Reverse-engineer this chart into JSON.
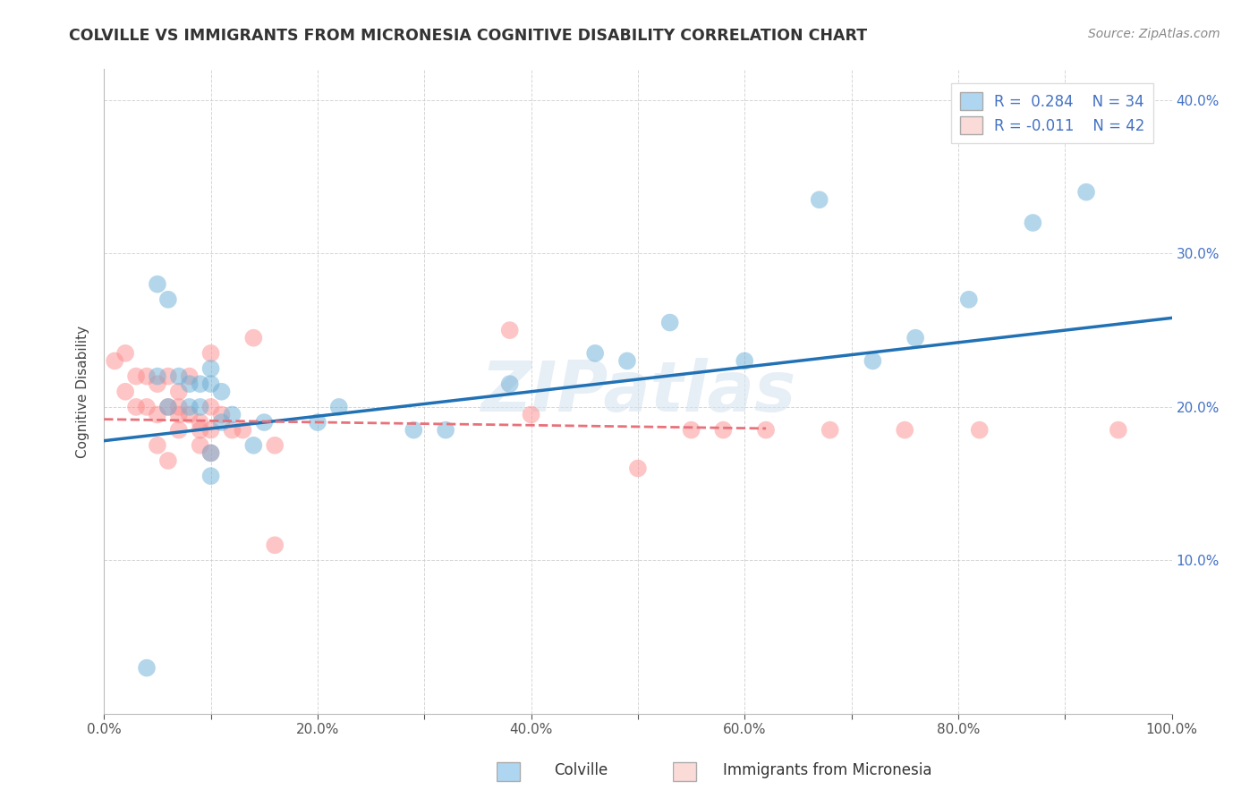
{
  "title": "COLVILLE VS IMMIGRANTS FROM MICRONESIA COGNITIVE DISABILITY CORRELATION CHART",
  "source": "Source: ZipAtlas.com",
  "xlabel_label": "Colville",
  "xlabel_label2": "Immigrants from Micronesia",
  "ylabel": "Cognitive Disability",
  "xlim": [
    0,
    1.0
  ],
  "ylim": [
    0,
    0.42
  ],
  "xticks": [
    0.0,
    0.1,
    0.2,
    0.3,
    0.4,
    0.5,
    0.6,
    0.7,
    0.8,
    0.9,
    1.0
  ],
  "xticklabels": [
    "0.0%",
    "",
    "20.0%",
    "",
    "40.0%",
    "",
    "60.0%",
    "",
    "80.0%",
    "",
    "100.0%"
  ],
  "yticks": [
    0.0,
    0.1,
    0.2,
    0.3,
    0.4
  ],
  "yticklabels_right": [
    "",
    "10.0%",
    "20.0%",
    "30.0%",
    "40.0%"
  ],
  "legend_R1": "R =  0.284",
  "legend_N1": "N = 34",
  "legend_R2": "R = -0.011",
  "legend_N2": "N = 42",
  "color_blue": "#6BAED6",
  "color_pink": "#FC8D8D",
  "color_blue_light": "#AED6F1",
  "color_pink_light": "#FADBD8",
  "color_blue_line": "#2171B5",
  "color_pink_line": "#E8717A",
  "color_grid": "#CCCCCC",
  "color_title": "#333333",
  "color_ytick": "#4472C4",
  "watermark": "ZIPatlas",
  "blue_scatter_x": [
    0.04,
    0.05,
    0.06,
    0.07,
    0.08,
    0.08,
    0.09,
    0.1,
    0.1,
    0.11,
    0.12,
    0.14,
    0.15,
    0.2,
    0.22,
    0.38,
    0.46,
    0.49,
    0.53,
    0.6,
    0.67,
    0.72,
    0.76,
    0.81,
    0.87,
    0.92,
    0.1,
    0.05,
    0.06,
    0.09,
    0.11,
    0.1,
    0.29,
    0.32
  ],
  "blue_scatter_y": [
    0.03,
    0.28,
    0.27,
    0.22,
    0.2,
    0.215,
    0.2,
    0.17,
    0.215,
    0.19,
    0.195,
    0.175,
    0.19,
    0.19,
    0.2,
    0.215,
    0.235,
    0.23,
    0.255,
    0.23,
    0.335,
    0.23,
    0.245,
    0.27,
    0.32,
    0.34,
    0.155,
    0.22,
    0.2,
    0.215,
    0.21,
    0.225,
    0.185,
    0.185
  ],
  "pink_scatter_x": [
    0.01,
    0.02,
    0.02,
    0.03,
    0.03,
    0.04,
    0.04,
    0.05,
    0.05,
    0.05,
    0.06,
    0.06,
    0.06,
    0.07,
    0.07,
    0.07,
    0.07,
    0.08,
    0.08,
    0.09,
    0.09,
    0.09,
    0.1,
    0.1,
    0.1,
    0.1,
    0.11,
    0.12,
    0.13,
    0.14,
    0.16,
    0.16,
    0.38,
    0.4,
    0.5,
    0.55,
    0.58,
    0.62,
    0.68,
    0.75,
    0.82,
    0.95
  ],
  "pink_scatter_y": [
    0.23,
    0.21,
    0.235,
    0.2,
    0.22,
    0.22,
    0.2,
    0.195,
    0.175,
    0.215,
    0.22,
    0.2,
    0.165,
    0.185,
    0.21,
    0.2,
    0.195,
    0.22,
    0.195,
    0.185,
    0.19,
    0.175,
    0.235,
    0.17,
    0.185,
    0.2,
    0.195,
    0.185,
    0.185,
    0.245,
    0.175,
    0.11,
    0.25,
    0.195,
    0.16,
    0.185,
    0.185,
    0.185,
    0.185,
    0.185,
    0.185,
    0.185
  ],
  "blue_line_x": [
    0.0,
    1.0
  ],
  "blue_line_y": [
    0.178,
    0.258
  ],
  "pink_line_x": [
    0.0,
    0.62
  ],
  "pink_line_y": [
    0.192,
    0.186
  ]
}
